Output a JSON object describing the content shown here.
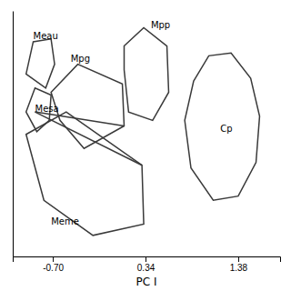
{
  "chart_data": {
    "type": "polygon",
    "xlabel": "PC I",
    "xlim": [
      -1.15,
      1.85
    ],
    "ylim": [
      -0.95,
      0.8
    ],
    "xticks": [
      {
        "value": -0.7,
        "label": "-0.70"
      },
      0.34,
      1.38
    ],
    "tick_labels": "x",
    "color": "#3a3a3a",
    "series": [
      {
        "name": "Meau",
        "x": [
          -1.0,
          -0.92,
          -0.72,
          -0.68,
          -0.78,
          -1.0
        ],
        "y": [
          0.35,
          0.58,
          0.6,
          0.42,
          0.25,
          0.35
        ],
        "label_x": -0.92,
        "label_y": 0.6
      },
      {
        "name": "Mpg",
        "x": [
          -0.72,
          -0.42,
          0.08,
          0.1,
          -0.35,
          -0.62,
          -0.72
        ],
        "y": [
          0.22,
          0.42,
          0.28,
          -0.02,
          -0.18,
          0.02,
          0.22
        ],
        "label_x": -0.5,
        "label_y": 0.44
      },
      {
        "name": "Mesa",
        "x": [
          -1.0,
          -0.9,
          -0.72,
          -0.74,
          -0.88,
          -1.0
        ],
        "y": [
          0.08,
          0.25,
          0.2,
          0.02,
          -0.06,
          0.08
        ],
        "label_x": -0.9,
        "label_y": 0.08
      },
      {
        "name": "Meme",
        "x": [
          -1.0,
          -0.55,
          0.3,
          0.32,
          -0.25,
          -0.8,
          -1.0
        ],
        "y": [
          -0.08,
          0.08,
          -0.3,
          -0.72,
          -0.8,
          -0.55,
          -0.08
        ],
        "label_x": -0.72,
        "label_y": -0.72
      },
      {
        "name": "Mpp",
        "x": [
          0.1,
          0.32,
          0.58,
          0.6,
          0.42,
          0.15,
          0.1,
          0.1
        ],
        "y": [
          0.55,
          0.68,
          0.55,
          0.22,
          0.02,
          0.08,
          0.38,
          0.55
        ],
        "label_x": 0.4,
        "label_y": 0.68
      },
      {
        "name": "Cp",
        "x": [
          0.88,
          1.05,
          1.3,
          1.52,
          1.62,
          1.58,
          1.38,
          1.1,
          0.85,
          0.78,
          0.88
        ],
        "y": [
          0.3,
          0.48,
          0.5,
          0.32,
          0.05,
          -0.28,
          -0.52,
          -0.55,
          -0.32,
          0.02,
          0.3
        ],
        "label_x": 1.18,
        "label_y": -0.06
      }
    ],
    "lines": [
      {
        "x": [
          -0.9,
          0.1
        ],
        "y": [
          0.08,
          -0.02
        ]
      },
      {
        "x": [
          -0.9,
          0.3
        ],
        "y": [
          0.08,
          -0.3
        ]
      }
    ]
  }
}
